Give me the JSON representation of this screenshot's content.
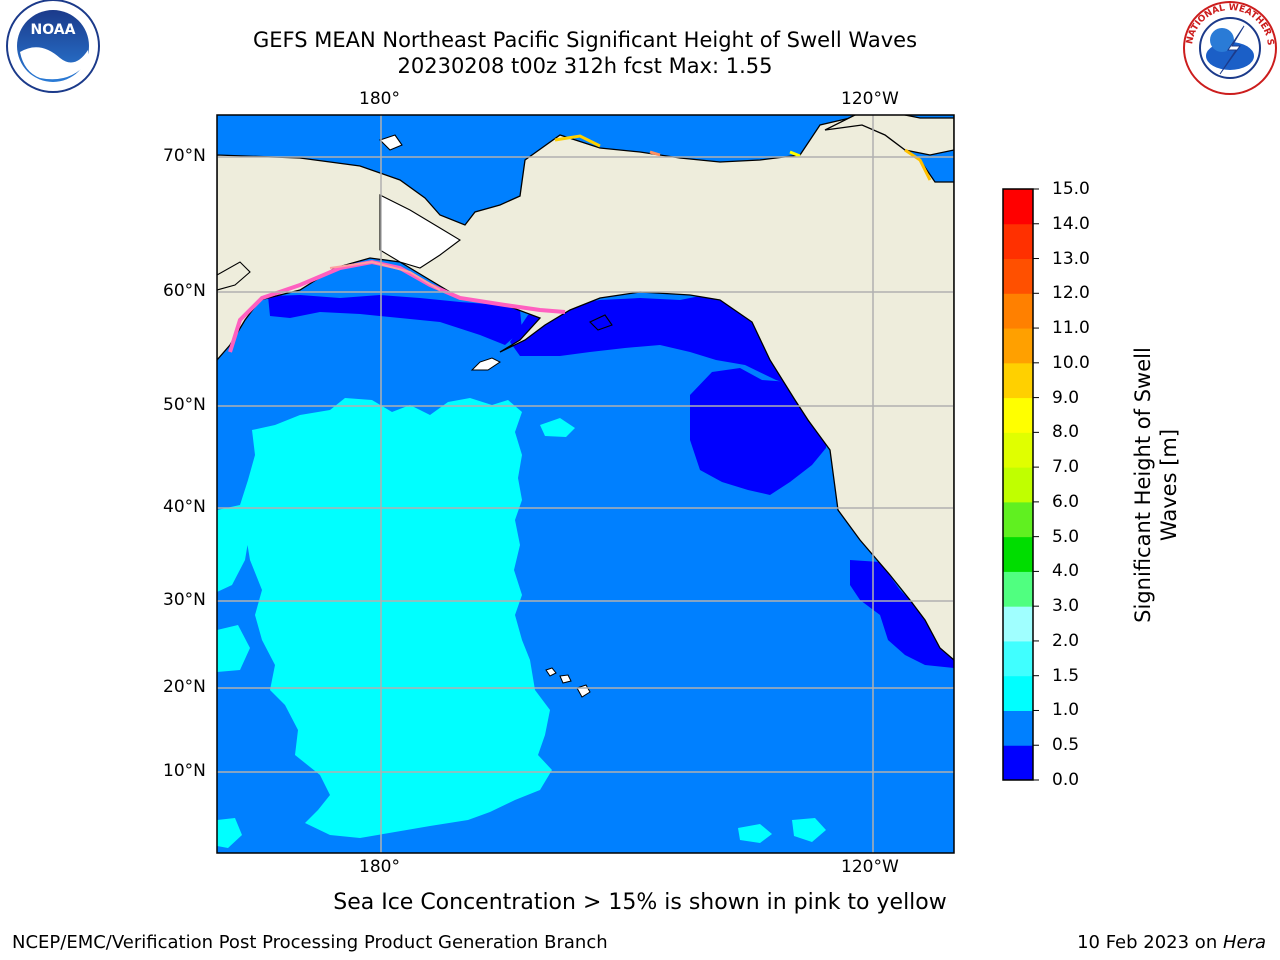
{
  "title_line1": "GEFS MEAN Northeast Pacific Significant Height of Swell Waves",
  "title_line2": "20230208 t00z 312h fcst   Max: 1.55",
  "map": {
    "lon_labels": [
      "180°",
      "120°W"
    ],
    "lat_labels": [
      "70°N",
      "60°N",
      "50°N",
      "40°N",
      "30°N",
      "20°N",
      "10°N"
    ],
    "grid": true,
    "land_color": "#eeeddc",
    "ocean_base_color": "#0080ff"
  },
  "colorbar": {
    "label": "Significant Height of Swell Waves [m]",
    "ticks": [
      "0.0",
      "0.5",
      "1.0",
      "1.5",
      "2.0",
      "3.0",
      "4.0",
      "5.0",
      "6.0",
      "7.0",
      "8.0",
      "9.0",
      "10.0",
      "11.0",
      "12.0",
      "13.0",
      "14.0",
      "15.0"
    ],
    "colors": [
      "#0000ff",
      "#0080ff",
      "#00ffff",
      "#40ffff",
      "#a0ffff",
      "#50ff80",
      "#00dd00",
      "#60f020",
      "#c0ff00",
      "#e0ff00",
      "#ffff00",
      "#ffd000",
      "#ffa000",
      "#ff8000",
      "#ff5000",
      "#ff3000",
      "#ff0000"
    ]
  },
  "note": "Sea Ice Concentration > 15% is shown in pink to yellow",
  "footer_left": "NCEP/EMC/Verification Post Processing Product Generation Branch",
  "footer_right_date": "10 Feb 2023 on ",
  "footer_right_machine": "Hera",
  "logos": {
    "left": "NOAA",
    "right": "NATIONAL WEATHER SERVICE"
  }
}
